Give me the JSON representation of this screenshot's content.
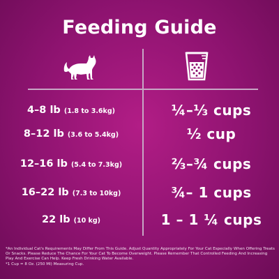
{
  "title": "Feeding Guide",
  "icons": {
    "left": "cat-icon",
    "right": "measuring-cup-icon"
  },
  "colors": {
    "background": "#8e1370",
    "text": "#ffffff",
    "divider": "#c7a8c5"
  },
  "rows": [
    {
      "weight": "4–8 lb",
      "kg": "(1.8 to 3.6kg)",
      "amount": "¼–⅓ cups"
    },
    {
      "weight": "8–12 lb",
      "kg": "(3.6 to 5.4kg)",
      "amount": "½ cup"
    },
    {
      "weight": "12–16 lb",
      "kg": "(5.4 to 7.3kg)",
      "amount": "⅔–¾ cups"
    },
    {
      "weight": "16–22 lb",
      "kg": "(7.3 to 10kg)",
      "amount": "¾– 1 cups"
    },
    {
      "weight": "22 lb",
      "kg": "(10 kg)",
      "amount": "1 – 1 ¼ cups"
    }
  ],
  "footnote": {
    "line1": "*An Individual Cat's Requirements May Differ From This Guide. Adjust Quantity Appropriately For Your Cat Especially When Offering Treats Or Snacks. Please Reduce The Chance For Your Cat To Become Overweight. Please Remember That Controlled Feeding And Increasing Play And Exercise Can Help. Keep Fresh Drinking Water Available.",
    "line2": "*1 Cup = 8 Oz. (250 Ml) Measuring Cup."
  }
}
